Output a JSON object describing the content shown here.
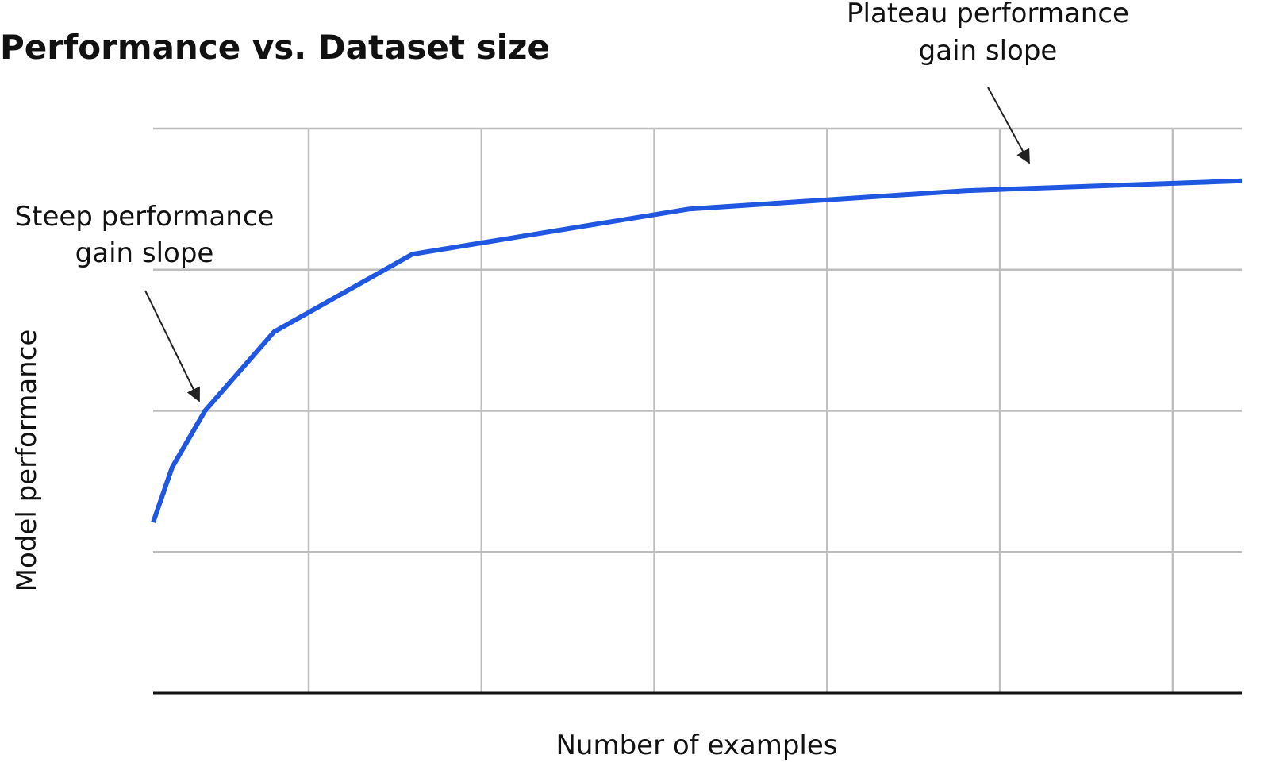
{
  "chart_data": {
    "type": "line",
    "title": "Performance vs. Dataset size",
    "x_label": "Number of examples",
    "y_label": "Model performance",
    "x": [
      0.1,
      0.21,
      0.4,
      0.8,
      1.6,
      3.2,
      4.8,
      6.4
    ],
    "values": [
      1.21,
      1.6,
      2.0,
      2.56,
      3.11,
      3.43,
      3.56,
      3.63
    ],
    "color": "#1f57e0",
    "xlim": [
      0.1,
      6.4
    ],
    "xticks": [
      1,
      2,
      3,
      4,
      5,
      6
    ],
    "ylim": [
      0,
      4
    ],
    "yticks": [
      0,
      1,
      2,
      3,
      4
    ],
    "grid": true,
    "annotations": [
      {
        "lines": [
          "Steep performance",
          "gain slope"
        ]
      },
      {
        "lines": [
          "Plateau performance",
          "gain slope"
        ]
      }
    ]
  }
}
